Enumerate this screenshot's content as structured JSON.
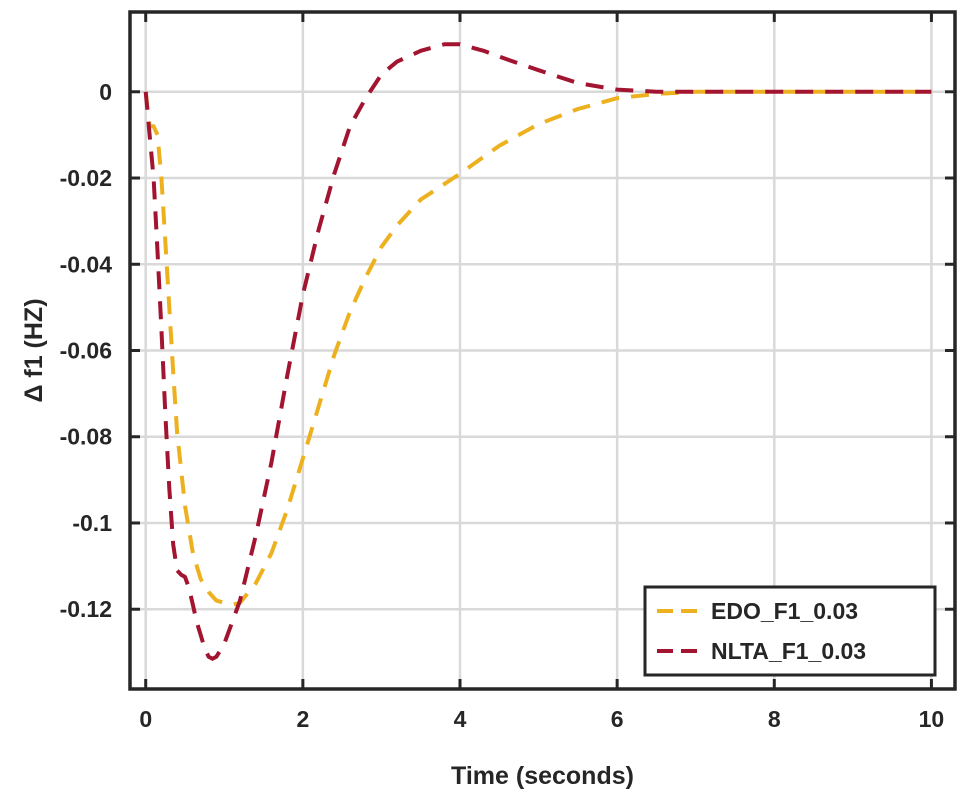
{
  "chart_data": {
    "type": "line",
    "title": "",
    "xlabel": "Time (seconds)",
    "ylabel": "Δ f1 (HZ)",
    "xlim": [
      -0.2,
      10.3
    ],
    "ylim": [
      -0.1385,
      0.0185
    ],
    "xticks": [
      0,
      2,
      4,
      6,
      8,
      10
    ],
    "xtick_labels": [
      "0",
      "2",
      "4",
      "6",
      "8",
      "10"
    ],
    "yticks": [
      0,
      -0.02,
      -0.04,
      -0.06,
      -0.08,
      -0.1,
      -0.12
    ],
    "ytick_labels": [
      "0",
      "-0.02",
      "-0.04",
      "-0.06",
      "-0.08",
      "-0.1",
      "-0.12"
    ],
    "grid": true,
    "legend_position": "bottom-right",
    "series": [
      {
        "name": "EDO_F1_0.03",
        "color": "#EDB120",
        "line_style": "dashed",
        "x": [
          0,
          0.05,
          0.1,
          0.15,
          0.2,
          0.25,
          0.3,
          0.35,
          0.4,
          0.5,
          0.6,
          0.7,
          0.8,
          0.9,
          1.0,
          1.1,
          1.2,
          1.4,
          1.6,
          1.8,
          2.0,
          2.2,
          2.4,
          2.6,
          2.8,
          3.0,
          3.2,
          3.5,
          4.0,
          4.5,
          5.0,
          5.5,
          6.0,
          6.5,
          7.0,
          7.5,
          8.0,
          9.0,
          10.0
        ],
        "y": [
          0,
          -0.008,
          -0.008,
          -0.01,
          -0.02,
          -0.035,
          -0.05,
          -0.065,
          -0.079,
          -0.096,
          -0.107,
          -0.113,
          -0.116,
          -0.118,
          -0.1185,
          -0.119,
          -0.1185,
          -0.114,
          -0.107,
          -0.097,
          -0.085,
          -0.073,
          -0.061,
          -0.051,
          -0.043,
          -0.036,
          -0.031,
          -0.025,
          -0.019,
          -0.0125,
          -0.0075,
          -0.004,
          -0.0015,
          -0.0005,
          0,
          0,
          0,
          0,
          0
        ]
      },
      {
        "name": "NLTA_F1_0.03",
        "color": "#A2142F",
        "line_style": "dashed",
        "x": [
          0,
          0.05,
          0.1,
          0.15,
          0.2,
          0.25,
          0.3,
          0.35,
          0.4,
          0.45,
          0.5,
          0.55,
          0.6,
          0.65,
          0.7,
          0.75,
          0.8,
          0.85,
          0.9,
          1.0,
          1.2,
          1.4,
          1.6,
          1.8,
          2.0,
          2.2,
          2.4,
          2.6,
          2.8,
          3.0,
          3.2,
          3.5,
          3.8,
          4.0,
          4.3,
          4.6,
          5.0,
          5.5,
          6.0,
          6.5,
          7.0,
          7.5,
          8.0,
          9.0,
          10.0
        ],
        "y": [
          0,
          -0.01,
          -0.02,
          -0.037,
          -0.055,
          -0.075,
          -0.092,
          -0.105,
          -0.111,
          -0.112,
          -0.1125,
          -0.115,
          -0.119,
          -0.123,
          -0.126,
          -0.129,
          -0.131,
          -0.1315,
          -0.131,
          -0.128,
          -0.118,
          -0.103,
          -0.086,
          -0.066,
          -0.047,
          -0.032,
          -0.019,
          -0.008,
          -0.0015,
          0.004,
          0.007,
          0.0095,
          0.011,
          0.011,
          0.0095,
          0.0075,
          0.005,
          0.002,
          0.0005,
          0,
          0,
          0,
          0,
          0,
          0
        ]
      }
    ]
  }
}
